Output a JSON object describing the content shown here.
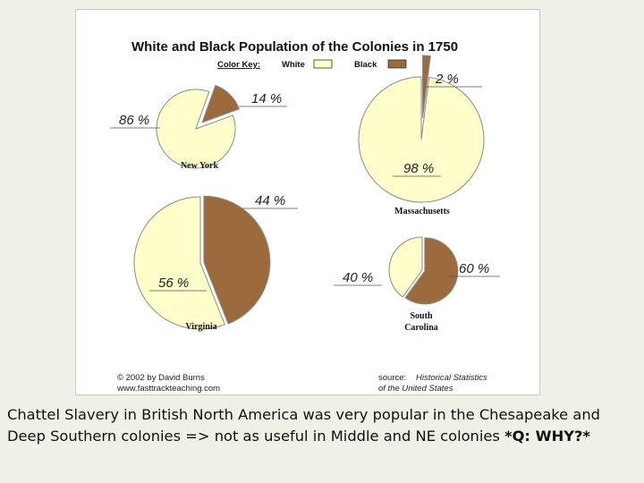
{
  "chart_data": {
    "type": "pie",
    "title": "White and Black Population of the Colonies in 1750",
    "color_key": {
      "label": "Color Key:",
      "entries": [
        {
          "name": "White",
          "swatch": "[ ]",
          "color": "#ffffcc"
        },
        {
          "name": "Black",
          "swatch": "[ ]",
          "color": "#9c6a3c"
        }
      ]
    },
    "pies": [
      {
        "colony": "New York",
        "slices": [
          {
            "series": "White",
            "value": 86,
            "label": "86 %"
          },
          {
            "series": "Black",
            "value": 14,
            "label": "14 %"
          }
        ]
      },
      {
        "colony": "Massachusetts",
        "slices": [
          {
            "series": "White",
            "value": 98,
            "label": "98 %"
          },
          {
            "series": "Black",
            "value": 2,
            "label": "2 %"
          }
        ]
      },
      {
        "colony": "Virginia",
        "slices": [
          {
            "series": "White",
            "value": 56,
            "label": "56 %"
          },
          {
            "series": "Black",
            "value": 44,
            "label": "44 %"
          }
        ]
      },
      {
        "colony": "South Carolina",
        "name_lines": [
          "South",
          "Carolina"
        ],
        "slices": [
          {
            "series": "White",
            "value": 40,
            "label": "40 %"
          },
          {
            "series": "Black",
            "value": 60,
            "label": "60 %"
          }
        ]
      }
    ]
  },
  "footer": {
    "copyright_line1": "© 2002 by David Burns",
    "copyright_line2": "www.fasttrackteaching.com",
    "source_label": "source:",
    "source_title_line1": "Historical Statistics",
    "source_title_line2": "of the United States"
  },
  "caption": {
    "text": "Chattel Slavery in British North America was very popular in the Chesapeake and Deep Southern colonies => not as useful in Middle and NE colonies ",
    "emphasis": "*Q: WHY?*"
  }
}
